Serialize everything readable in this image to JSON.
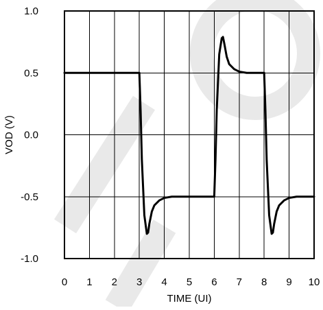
{
  "chart_data": {
    "type": "line",
    "xlabel": "TIME (UI)",
    "ylabel": "VOD (V)",
    "xlim": [
      0,
      10
    ],
    "ylim": [
      -1.0,
      1.0
    ],
    "x_ticks": [
      0,
      1,
      2,
      3,
      4,
      5,
      6,
      7,
      8,
      9,
      10
    ],
    "x_tick_labels": [
      "0",
      "1",
      "2",
      "3",
      "4",
      "5",
      "6",
      "7",
      "8",
      "9",
      "10"
    ],
    "y_ticks": [
      1.0,
      0.5,
      0.0,
      -0.5,
      -1.0
    ],
    "y_tick_labels": [
      "1.0",
      "0.5",
      "0.0",
      "-0.5",
      "-1.0"
    ],
    "grid": true,
    "line_color": "#000000",
    "watermark_color": "#e3e3e3",
    "series": [
      {
        "x": [
          0,
          3.0,
          3.05,
          3.1,
          3.2,
          3.3,
          3.35,
          3.4,
          3.5,
          3.6,
          3.8,
          4.0,
          4.3,
          4.7,
          5.0,
          6.0,
          6.05,
          6.1,
          6.2,
          6.3,
          6.35,
          6.4,
          6.5,
          6.6,
          6.8,
          7.0,
          7.3,
          7.7,
          8.0,
          8.05,
          8.1,
          8.2,
          8.3,
          8.35,
          8.4,
          8.5,
          8.6,
          8.8,
          9.0,
          9.3,
          9.7,
          10.0
        ],
        "y": [
          0.5,
          0.5,
          0.2,
          -0.2,
          -0.65,
          -0.8,
          -0.79,
          -0.72,
          -0.62,
          -0.57,
          -0.53,
          -0.51,
          -0.5,
          -0.5,
          -0.5,
          -0.5,
          -0.2,
          0.2,
          0.65,
          0.78,
          0.79,
          0.74,
          0.63,
          0.57,
          0.53,
          0.51,
          0.5,
          0.5,
          0.5,
          0.2,
          -0.2,
          -0.65,
          -0.8,
          -0.79,
          -0.72,
          -0.62,
          -0.57,
          -0.53,
          -0.51,
          -0.5,
          -0.5,
          -0.5
        ]
      }
    ]
  }
}
